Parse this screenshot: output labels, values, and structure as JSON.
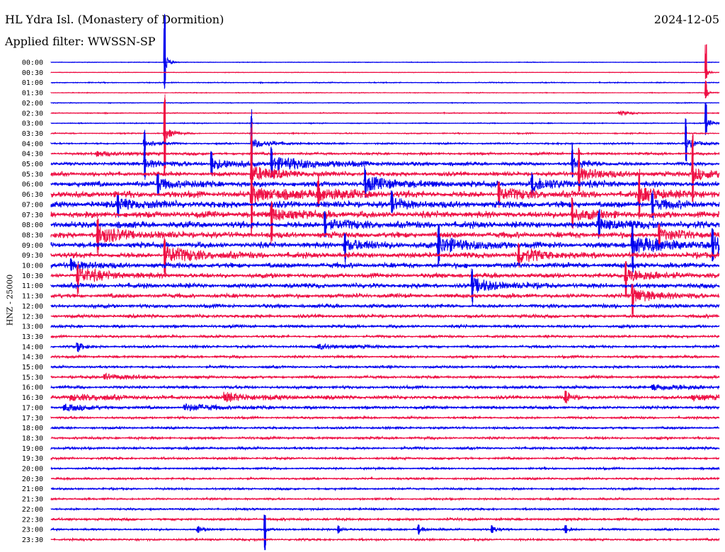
{
  "header": {
    "station": "HL Ydra Isl. (Monastery of Dormition)",
    "date": "2024-12-05",
    "filter": "Applied filter: WWSSN-SP"
  },
  "chart_data": {
    "type": "seismogram",
    "ylabel": "HNZ - 25000",
    "colors": [
      "#0000ee",
      "#ee0f44"
    ],
    "rows": [
      "00:00",
      "00:30",
      "01:00",
      "01:30",
      "02:00",
      "02:30",
      "03:00",
      "03:30",
      "04:00",
      "04:30",
      "05:00",
      "05:30",
      "06:00",
      "06:30",
      "07:00",
      "07:30",
      "08:00",
      "08:30",
      "09:00",
      "09:30",
      "10:00",
      "10:30",
      "11:00",
      "11:30",
      "12:00",
      "12:30",
      "13:00",
      "13:30",
      "14:00",
      "14:30",
      "15:00",
      "15:30",
      "16:00",
      "16:30",
      "17:00",
      "17:30",
      "18:00",
      "18:30",
      "19:00",
      "19:30",
      "20:00",
      "20:30",
      "21:00",
      "21:30",
      "22:00",
      "22:30",
      "23:00",
      "23:30"
    ],
    "noise_level": [
      0.3,
      0.3,
      0.5,
      0.4,
      0.4,
      0.5,
      0.5,
      0.6,
      0.8,
      1.2,
      1.6,
      2.0,
      2.6,
      3.0,
      3.0,
      3.0,
      3.0,
      2.8,
      2.6,
      2.6,
      2.4,
      2.2,
      2.2,
      2.0,
      1.8,
      1.6,
      1.4,
      1.2,
      1.2,
      1.2,
      1.2,
      1.3,
      1.4,
      1.6,
      1.4,
      1.1,
      1.1,
      1.2,
      1.2,
      1.1,
      1.0,
      1.0,
      1.0,
      1.0,
      1.0,
      1.2,
      1.0,
      1.0
    ],
    "events": [
      {
        "row": 0,
        "t": 0.17,
        "amp": 14,
        "up": 70,
        "down": 40,
        "dur": 0.006
      },
      {
        "row": 1,
        "t": 0.98,
        "amp": 8,
        "up": 40,
        "down": 10,
        "dur": 0.005
      },
      {
        "row": 3,
        "t": 0.98,
        "amp": 6,
        "up": 20,
        "down": 8,
        "dur": 0.005
      },
      {
        "row": 5,
        "t": 0.85,
        "amp": 3,
        "up": 2,
        "down": 2,
        "dur": 0.02
      },
      {
        "row": 6,
        "t": 0.98,
        "amp": 6,
        "up": 30,
        "down": 20,
        "dur": 0.01
      },
      {
        "row": 7,
        "t": 0.17,
        "amp": 9,
        "up": 60,
        "down": 60,
        "dur": 0.012
      },
      {
        "row": 8,
        "t": 0.3,
        "amp": 6,
        "up": 50,
        "down": 45,
        "dur": 0.03
      },
      {
        "row": 8,
        "t": 0.14,
        "amp": 5,
        "up": 20,
        "down": 15,
        "dur": 0.02
      },
      {
        "row": 8,
        "t": 0.95,
        "amp": 6,
        "up": 40,
        "down": 30,
        "dur": 0.02
      },
      {
        "row": 9,
        "t": 0.07,
        "amp": 3,
        "up": 4,
        "down": 4,
        "dur": 0.05
      },
      {
        "row": 10,
        "t": 0.24,
        "amp": 7,
        "up": 20,
        "down": 20,
        "dur": 0.04
      },
      {
        "row": 10,
        "t": 0.14,
        "amp": 6,
        "up": 30,
        "down": 25,
        "dur": 0.03
      },
      {
        "row": 10,
        "t": 0.33,
        "amp": 8,
        "up": 25,
        "down": 20,
        "dur": 0.08
      },
      {
        "row": 10,
        "t": 0.78,
        "amp": 6,
        "up": 30,
        "down": 20,
        "dur": 0.03
      },
      {
        "row": 11,
        "t": 0.3,
        "amp": 10,
        "up": 80,
        "down": 50,
        "dur": 0.04
      },
      {
        "row": 11,
        "t": 0.79,
        "amp": 8,
        "up": 40,
        "down": 30,
        "dur": 0.04
      },
      {
        "row": 11,
        "t": 0.96,
        "amp": 8,
        "up": 60,
        "down": 40,
        "dur": 0.04
      },
      {
        "row": 12,
        "t": 0.47,
        "amp": 8,
        "up": 30,
        "down": 20,
        "dur": 0.05
      },
      {
        "row": 12,
        "t": 0.72,
        "amp": 7,
        "up": 20,
        "down": 20,
        "dur": 0.05
      },
      {
        "row": 12,
        "t": 0.16,
        "amp": 6,
        "up": 20,
        "down": 20,
        "dur": 0.04
      },
      {
        "row": 13,
        "t": 0.3,
        "amp": 9,
        "up": 40,
        "down": 60,
        "dur": 0.05
      },
      {
        "row": 13,
        "t": 0.4,
        "amp": 7,
        "up": 30,
        "down": 20,
        "dur": 0.04
      },
      {
        "row": 13,
        "t": 0.67,
        "amp": 7,
        "up": 20,
        "down": 20,
        "dur": 0.04
      },
      {
        "row": 13,
        "t": 0.88,
        "amp": 8,
        "up": 40,
        "down": 40,
        "dur": 0.04
      },
      {
        "row": 14,
        "t": 0.1,
        "amp": 6,
        "up": 15,
        "down": 20,
        "dur": 0.04
      },
      {
        "row": 14,
        "t": 0.51,
        "amp": 6,
        "up": 20,
        "down": 15,
        "dur": 0.03
      },
      {
        "row": 14,
        "t": 0.9,
        "amp": 6,
        "up": 20,
        "down": 30,
        "dur": 0.03
      },
      {
        "row": 15,
        "t": 0.33,
        "amp": 7,
        "up": 20,
        "down": 50,
        "dur": 0.04
      },
      {
        "row": 15,
        "t": 0.78,
        "amp": 6,
        "up": 25,
        "down": 20,
        "dur": 0.04
      },
      {
        "row": 16,
        "t": 0.41,
        "amp": 6,
        "up": 20,
        "down": 20,
        "dur": 0.04
      },
      {
        "row": 16,
        "t": 0.82,
        "amp": 6,
        "up": 25,
        "down": 20,
        "dur": 0.04
      },
      {
        "row": 17,
        "t": 0.07,
        "amp": 10,
        "up": 30,
        "down": 30,
        "dur": 0.04
      },
      {
        "row": 17,
        "t": 0.91,
        "amp": 6,
        "up": 20,
        "down": 20,
        "dur": 0.04
      },
      {
        "row": 18,
        "t": 0.58,
        "amp": 10,
        "up": 30,
        "down": 30,
        "dur": 0.05
      },
      {
        "row": 18,
        "t": 0.44,
        "amp": 7,
        "up": 20,
        "down": 30,
        "dur": 0.04
      },
      {
        "row": 18,
        "t": 0.87,
        "amp": 10,
        "up": 30,
        "down": 40,
        "dur": 0.06
      },
      {
        "row": 18,
        "t": 0.99,
        "amp": 10,
        "up": 25,
        "down": 25,
        "dur": 0.04
      },
      {
        "row": 19,
        "t": 0.17,
        "amp": 10,
        "up": 30,
        "down": 30,
        "dur": 0.05
      },
      {
        "row": 19,
        "t": 0.7,
        "amp": 8,
        "up": 20,
        "down": 20,
        "dur": 0.04
      },
      {
        "row": 20,
        "t": 0.03,
        "amp": 6,
        "up": 10,
        "down": 10,
        "dur": 0.03
      },
      {
        "row": 21,
        "t": 0.04,
        "amp": 10,
        "up": 20,
        "down": 30,
        "dur": 0.04
      },
      {
        "row": 21,
        "t": 0.86,
        "amp": 9,
        "up": 25,
        "down": 30,
        "dur": 0.04
      },
      {
        "row": 22,
        "t": 0.63,
        "amp": 9,
        "up": 25,
        "down": 30,
        "dur": 0.04
      },
      {
        "row": 23,
        "t": 0.87,
        "amp": 9,
        "up": 20,
        "down": 30,
        "dur": 0.04
      },
      {
        "row": 28,
        "t": 0.04,
        "amp": 5,
        "up": 6,
        "down": 8,
        "dur": 0.01
      },
      {
        "row": 28,
        "t": 0.4,
        "amp": 3,
        "up": 3,
        "down": 3,
        "dur": 0.05
      },
      {
        "row": 31,
        "t": 0.08,
        "amp": 4,
        "up": 4,
        "down": 4,
        "dur": 0.04
      },
      {
        "row": 32,
        "t": 0.9,
        "amp": 4,
        "up": 4,
        "down": 4,
        "dur": 0.06
      },
      {
        "row": 33,
        "t": 0.03,
        "amp": 4,
        "up": 4,
        "down": 4,
        "dur": 0.06
      },
      {
        "row": 33,
        "t": 0.26,
        "amp": 5,
        "up": 5,
        "down": 5,
        "dur": 0.06
      },
      {
        "row": 33,
        "t": 0.77,
        "amp": 6,
        "up": 10,
        "down": 10,
        "dur": 0.01
      },
      {
        "row": 33,
        "t": 0.96,
        "amp": 4,
        "up": 4,
        "down": 4,
        "dur": 0.04
      },
      {
        "row": 34,
        "t": 0.02,
        "amp": 4,
        "up": 4,
        "down": 4,
        "dur": 0.04
      },
      {
        "row": 34,
        "t": 0.2,
        "amp": 4,
        "up": 4,
        "down": 4,
        "dur": 0.06
      },
      {
        "row": 46,
        "t": 0.32,
        "amp": 4,
        "up": 25,
        "down": 30,
        "dur": 0.004
      },
      {
        "row": 46,
        "t": 0.22,
        "amp": 3,
        "up": 5,
        "down": 5,
        "dur": 0.01
      },
      {
        "row": 46,
        "t": 0.43,
        "amp": 3,
        "up": 6,
        "down": 6,
        "dur": 0.01
      },
      {
        "row": 46,
        "t": 0.55,
        "amp": 3,
        "up": 8,
        "down": 8,
        "dur": 0.01
      },
      {
        "row": 46,
        "t": 0.66,
        "amp": 3,
        "up": 6,
        "down": 6,
        "dur": 0.01
      },
      {
        "row": 46,
        "t": 0.77,
        "amp": 3,
        "up": 6,
        "down": 6,
        "dur": 0.01
      }
    ]
  }
}
